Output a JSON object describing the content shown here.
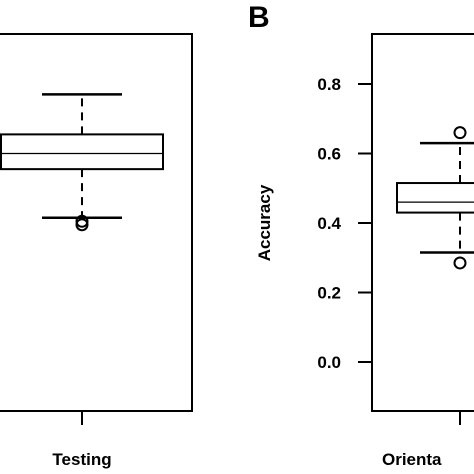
{
  "chart_data": [
    {
      "type": "box",
      "panel_label": "",
      "ylabel": "",
      "ylim": [
        -0.13,
        0.94
      ],
      "categories": [
        "Testing"
      ],
      "boxes": [
        {
          "category": "Testing",
          "whisker_low": 0.415,
          "q1": 0.555,
          "median": 0.6,
          "q3": 0.655,
          "whisker_high": 0.77,
          "outliers": [
            0.405,
            0.395
          ]
        }
      ]
    },
    {
      "type": "box",
      "panel_label": "B",
      "ylabel": "Accuracy",
      "ylim": [
        -0.13,
        0.94
      ],
      "yticks": [
        "0.0",
        "0.2",
        "0.4",
        "0.6",
        "0.8"
      ],
      "ytick_values": [
        0.0,
        0.2,
        0.4,
        0.6,
        0.8
      ],
      "categories": [
        "Orientation"
      ],
      "category_label_visible": "Orienta",
      "boxes": [
        {
          "category": "Orientation",
          "whisker_low": 0.315,
          "q1": 0.43,
          "median": 0.46,
          "q3": 0.515,
          "whisker_high": 0.63,
          "outliers": [
            0.66,
            0.285
          ]
        }
      ]
    }
  ]
}
